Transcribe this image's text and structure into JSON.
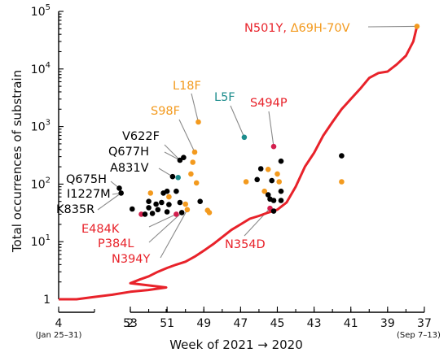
{
  "chart_data": {
    "type": "scatter",
    "title": "",
    "xlabel": "Week of 2021 → 2020",
    "ylabel": "Total occurrences of substrain",
    "y_scale": "log",
    "ylim": [
      1,
      100000
    ],
    "y_ticks": [
      {
        "value": 1,
        "label": "1"
      },
      {
        "value": 10,
        "base": "10",
        "exp": "1"
      },
      {
        "value": 100,
        "base": "10",
        "exp": "2"
      },
      {
        "value": 1000,
        "base": "10",
        "exp": "3"
      },
      {
        "value": 10000,
        "base": "10",
        "exp": "4"
      },
      {
        "value": 100000,
        "base": "10",
        "exp": "5"
      }
    ],
    "x_axis": {
      "direction": "reverse-chronological",
      "segments": [
        {
          "year": 2021,
          "weeks": [
            4,
            1
          ],
          "ticks": [
            4,
            2
          ]
        },
        {
          "year": 2020,
          "weeks": [
            53,
            37
          ],
          "ticks": [
            53,
            51,
            49,
            47,
            45,
            43,
            41,
            39,
            37
          ]
        }
      ],
      "tick_labels": [
        "4",
        "2",
        "53",
        "51",
        "49",
        "47",
        "45",
        "43",
        "41",
        "39",
        "37"
      ],
      "range_notes": [
        "(Jan 25–31)",
        "(Sep 7–13)"
      ]
    },
    "colors": {
      "red": "#e8222a",
      "orange": "#f39a1e",
      "teal": "#1c8c8c",
      "black": "#000000",
      "crimson": "#d3204e",
      "leader": "#8a8a8a"
    },
    "curve": {
      "color": "#e8222a",
      "points": [
        {
          "year": 2021,
          "week": 4.0,
          "y": 1.0
        },
        {
          "year": 2021,
          "week": 3.5,
          "y": 1.0
        },
        {
          "year": 2021,
          "week": 3.0,
          "y": 1.1
        },
        {
          "year": 2021,
          "week": 2.5,
          "y": 1.2
        },
        {
          "year": 2021,
          "week": 2.0,
          "y": 1.35
        },
        {
          "year": 2021,
          "week": 1.5,
          "y": 1.45
        },
        {
          "year": 2021,
          "week": 1.0,
          "y": 1.6
        },
        {
          "year": 2020,
          "week": 53.0,
          "y": 1.9
        },
        {
          "year": 2020,
          "week": 52.5,
          "y": 2.2
        },
        {
          "year": 2020,
          "week": 52.0,
          "y": 2.5
        },
        {
          "year": 2020,
          "week": 51.5,
          "y": 3.0
        },
        {
          "year": 2020,
          "week": 51.0,
          "y": 3.5
        },
        {
          "year": 2020,
          "week": 50.5,
          "y": 4.0
        },
        {
          "year": 2020,
          "week": 50.0,
          "y": 4.5
        },
        {
          "year": 2020,
          "week": 49.5,
          "y": 5.5
        },
        {
          "year": 2020,
          "week": 49.0,
          "y": 7.0
        },
        {
          "year": 2020,
          "week": 48.5,
          "y": 9.0
        },
        {
          "year": 2020,
          "week": 48.0,
          "y": 12.0
        },
        {
          "year": 2020,
          "week": 47.5,
          "y": 16.0
        },
        {
          "year": 2020,
          "week": 47.0,
          "y": 20.0
        },
        {
          "year": 2020,
          "week": 46.5,
          "y": 25.0
        },
        {
          "year": 2020,
          "week": 46.0,
          "y": 28.0
        },
        {
          "year": 2020,
          "week": 45.5,
          "y": 32.0
        },
        {
          "year": 2020,
          "week": 45.0,
          "y": 36.0
        },
        {
          "year": 2020,
          "week": 44.5,
          "y": 48.0
        },
        {
          "year": 2020,
          "week": 44.0,
          "y": 90.0
        },
        {
          "year": 2020,
          "week": 43.5,
          "y": 200.0
        },
        {
          "year": 2020,
          "week": 43.0,
          "y": 350.0
        },
        {
          "year": 2020,
          "week": 42.5,
          "y": 700.0
        },
        {
          "year": 2020,
          "week": 42.0,
          "y": 1200.0
        },
        {
          "year": 2020,
          "week": 41.5,
          "y": 2000.0
        },
        {
          "year": 2020,
          "week": 41.0,
          "y": 3000.0
        },
        {
          "year": 2020,
          "week": 40.5,
          "y": 4500.0
        },
        {
          "year": 2020,
          "week": 40.0,
          "y": 7000.0
        },
        {
          "year": 2020,
          "week": 39.5,
          "y": 8500.0
        },
        {
          "year": 2020,
          "week": 39.0,
          "y": 9000.0
        },
        {
          "year": 2020,
          "week": 38.5,
          "y": 12000.0
        },
        {
          "year": 2020,
          "week": 38.0,
          "y": 17000.0
        },
        {
          "year": 2020,
          "week": 37.6,
          "y": 30000.0
        },
        {
          "year": 2020,
          "week": 37.4,
          "y": 55000.0
        }
      ]
    },
    "points": [
      {
        "year": 2020,
        "week": 37.4,
        "y": 55000,
        "color": "orange"
      },
      {
        "year": 2020,
        "week": 49.3,
        "y": 1200,
        "color": "orange"
      },
      {
        "year": 2020,
        "week": 46.8,
        "y": 650,
        "color": "teal"
      },
      {
        "year": 2020,
        "week": 45.2,
        "y": 450,
        "color": "crimson"
      },
      {
        "year": 2020,
        "week": 49.5,
        "y": 360,
        "color": "orange"
      },
      {
        "year": 2020,
        "week": 50.1,
        "y": 290,
        "color": "black"
      },
      {
        "year": 2020,
        "week": 50.3,
        "y": 260,
        "color": "black"
      },
      {
        "year": 2020,
        "week": 49.6,
        "y": 240,
        "color": "orange"
      },
      {
        "year": 2020,
        "week": 44.8,
        "y": 250,
        "color": "black"
      },
      {
        "year": 2020,
        "week": 41.5,
        "y": 310,
        "color": "black"
      },
      {
        "year": 2020,
        "week": 45.5,
        "y": 180,
        "color": "orange"
      },
      {
        "year": 2020,
        "week": 45.9,
        "y": 185,
        "color": "black"
      },
      {
        "year": 2020,
        "week": 45.0,
        "y": 150,
        "color": "orange"
      },
      {
        "year": 2020,
        "week": 50.7,
        "y": 135,
        "color": "black"
      },
      {
        "year": 2020,
        "week": 50.4,
        "y": 130,
        "color": "teal"
      },
      {
        "year": 2020,
        "week": 49.7,
        "y": 150,
        "color": "orange"
      },
      {
        "year": 2020,
        "week": 45.3,
        "y": 115,
        "color": "black"
      },
      {
        "year": 2020,
        "week": 44.9,
        "y": 110,
        "color": "orange"
      },
      {
        "year": 2020,
        "week": 41.5,
        "y": 110,
        "color": "orange"
      },
      {
        "year": 2020,
        "week": 49.4,
        "y": 105,
        "color": "orange"
      },
      {
        "year": 2020,
        "week": 46.7,
        "y": 110,
        "color": "orange"
      },
      {
        "year": 2020,
        "week": 46.1,
        "y": 120,
        "color": "black"
      },
      {
        "year": 2020,
        "week": 53.6,
        "y": 85,
        "color": "black"
      },
      {
        "year": 2020,
        "week": 53.5,
        "y": 70,
        "color": "black"
      },
      {
        "year": 2020,
        "week": 51.9,
        "y": 70,
        "color": "orange"
      },
      {
        "year": 2020,
        "week": 51.2,
        "y": 70,
        "color": "black"
      },
      {
        "year": 2020,
        "week": 51.0,
        "y": 75,
        "color": "black"
      },
      {
        "year": 2020,
        "week": 50.5,
        "y": 75,
        "color": "black"
      },
      {
        "year": 2020,
        "week": 50.9,
        "y": 60,
        "color": "orange"
      },
      {
        "year": 2020,
        "week": 45.7,
        "y": 75,
        "color": "orange"
      },
      {
        "year": 2020,
        "week": 44.8,
        "y": 75,
        "color": "black"
      },
      {
        "year": 2020,
        "week": 45.5,
        "y": 65,
        "color": "black"
      },
      {
        "year": 2020,
        "week": 52.0,
        "y": 50,
        "color": "black"
      },
      {
        "year": 2020,
        "week": 51.6,
        "y": 45,
        "color": "black"
      },
      {
        "year": 2020,
        "week": 51.3,
        "y": 48,
        "color": "black"
      },
      {
        "year": 2020,
        "week": 50.9,
        "y": 44,
        "color": "black"
      },
      {
        "year": 2020,
        "week": 50.3,
        "y": 48,
        "color": "black"
      },
      {
        "year": 2020,
        "week": 50.0,
        "y": 45,
        "color": "orange"
      },
      {
        "year": 2020,
        "week": 49.2,
        "y": 50,
        "color": "black"
      },
      {
        "year": 2020,
        "week": 48.8,
        "y": 35,
        "color": "orange"
      },
      {
        "year": 2020,
        "week": 48.7,
        "y": 32,
        "color": "orange"
      },
      {
        "year": 2020,
        "week": 52.9,
        "y": 37,
        "color": "black"
      },
      {
        "year": 2020,
        "week": 52.0,
        "y": 39,
        "color": "black"
      },
      {
        "year": 2020,
        "week": 51.5,
        "y": 36,
        "color": "black"
      },
      {
        "year": 2020,
        "week": 51.0,
        "y": 33,
        "color": "black"
      },
      {
        "year": 2020,
        "week": 50.5,
        "y": 30,
        "color": "crimson"
      },
      {
        "year": 2020,
        "week": 50.2,
        "y": 32,
        "color": "black"
      },
      {
        "year": 2020,
        "week": 49.9,
        "y": 36,
        "color": "orange"
      },
      {
        "year": 2020,
        "week": 52.4,
        "y": 30,
        "color": "crimson"
      },
      {
        "year": 2020,
        "week": 52.2,
        "y": 30,
        "color": "black"
      },
      {
        "year": 2020,
        "week": 51.8,
        "y": 31,
        "color": "black"
      },
      {
        "year": 2020,
        "week": 45.4,
        "y": 55,
        "color": "black"
      },
      {
        "year": 2020,
        "week": 45.2,
        "y": 52,
        "color": "black"
      },
      {
        "year": 2020,
        "week": 44.8,
        "y": 52,
        "color": "black"
      },
      {
        "year": 2020,
        "week": 45.4,
        "y": 38,
        "color": "crimson"
      },
      {
        "year": 2020,
        "week": 45.2,
        "y": 34,
        "color": "black"
      }
    ],
    "annotations": [
      {
        "label": "N501Y",
        "label2": "Δ69H-70V",
        "color": "red",
        "color2": "orange",
        "point_week": 37.4,
        "point_y": 55000
      },
      {
        "label": "L18F",
        "color": "orange",
        "point_week": 49.3,
        "point_y": 1200
      },
      {
        "label": "L5F",
        "color": "teal",
        "point_week": 46.8,
        "point_y": 650
      },
      {
        "label": "S494P",
        "color": "red",
        "point_week": 45.2,
        "point_y": 450
      },
      {
        "label": "S98F",
        "color": "orange",
        "point_week": 49.5,
        "point_y": 360
      },
      {
        "label": "V622F",
        "color": "black",
        "point_week": 50.3,
        "point_y": 260
      },
      {
        "label": "Q677H",
        "color": "black",
        "point_week": 50.3,
        "point_y": 260
      },
      {
        "label": "A831V",
        "color": "black",
        "point_week": 50.7,
        "point_y": 135
      },
      {
        "label": "Q675H",
        "color": "black",
        "point_week": 53.6,
        "point_y": 85
      },
      {
        "label": "I1227M",
        "color": "black",
        "point_week": 53.5,
        "point_y": 70
      },
      {
        "label": "K835R",
        "color": "black",
        "point_week": 53.5,
        "point_y": 70
      },
      {
        "label": "E484K",
        "color": "red",
        "point_week": 50.5,
        "point_y": 30
      },
      {
        "label": "P384L",
        "color": "red",
        "point_week": 50.2,
        "point_y": 32
      },
      {
        "label": "N394Y",
        "color": "red",
        "point_week": 49.9,
        "point_y": 36
      },
      {
        "label": "N354D",
        "color": "red",
        "point_week": 45.4,
        "point_y": 38
      }
    ]
  }
}
